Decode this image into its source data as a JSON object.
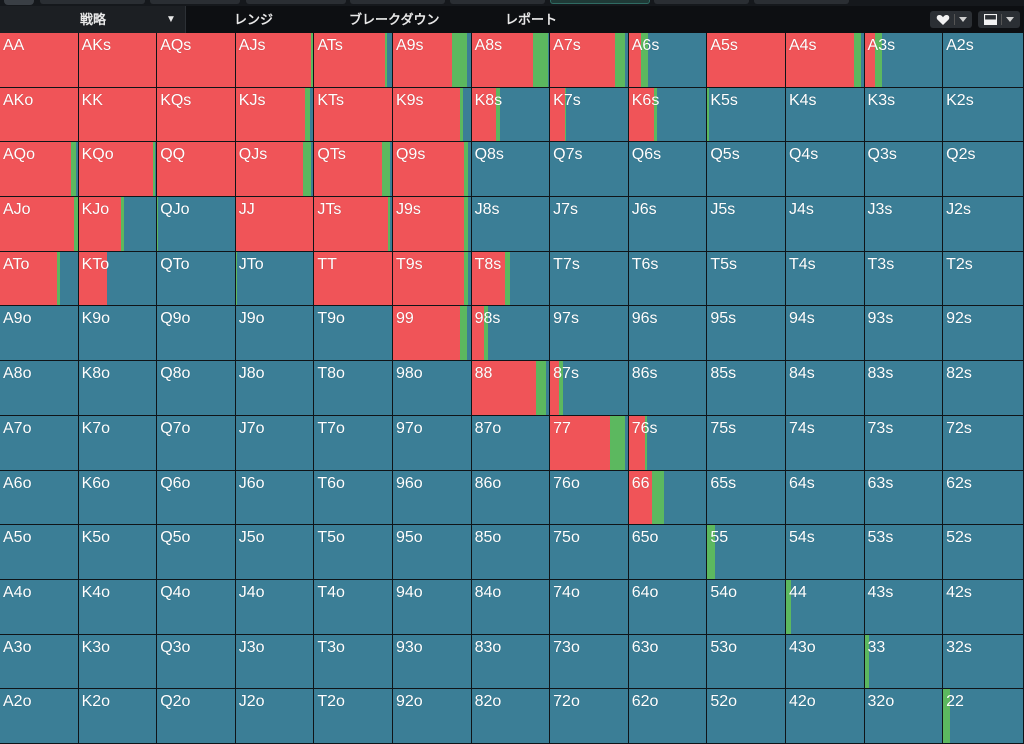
{
  "tabs": {
    "strategy": "戦略",
    "range": "レンジ",
    "breakdown": "ブレークダウン",
    "report": "レポート"
  },
  "toolbar": {
    "favorite_icon": "heart-icon",
    "view_icon": "layout-icon"
  },
  "colors": {
    "raise": "#f05458",
    "call": "#5cb85f",
    "fold": "#3b7e96"
  },
  "grid": {
    "rows": [
      [
        [
          "AA",
          1,
          0
        ],
        [
          "AKs",
          1,
          0
        ],
        [
          "AQs",
          1,
          0
        ],
        [
          "AJs",
          0.97,
          0.03
        ],
        [
          "ATs",
          0.91,
          0.02
        ],
        [
          "A9s",
          0.76,
          0.19
        ],
        [
          "A8s",
          0.79,
          0.19
        ],
        [
          "A7s",
          0.83,
          0.13
        ],
        [
          "A6s",
          0.16,
          0.09
        ],
        [
          "A5s",
          1,
          0
        ],
        [
          "A4s",
          0.88,
          0.09
        ],
        [
          "A3s",
          0.13,
          0.09
        ],
        [
          "A2s",
          0,
          0
        ]
      ],
      [
        [
          "AKo",
          1,
          0
        ],
        [
          "KK",
          1,
          0
        ],
        [
          "KQs",
          1,
          0
        ],
        [
          "KJs",
          0.89,
          0.07
        ],
        [
          "KTs",
          1,
          0
        ],
        [
          "K9s",
          0.87,
          0.03
        ],
        [
          "K8s",
          0.31,
          0.06
        ],
        [
          "K7s",
          0.19,
          0.02
        ],
        [
          "K6s",
          0.32,
          0.05
        ],
        [
          "K5s",
          0,
          0.02
        ],
        [
          "K4s",
          0,
          0
        ],
        [
          "K3s",
          0,
          0
        ],
        [
          "K2s",
          0,
          0
        ]
      ],
      [
        [
          "AQo",
          0.92,
          0.06
        ],
        [
          "KQo",
          0.96,
          0.03
        ],
        [
          "QQ",
          1,
          0
        ],
        [
          "QJs",
          0.86,
          0.11
        ],
        [
          "QTs",
          0.87,
          0.11
        ],
        [
          "Q9s",
          0.92,
          0.05
        ],
        [
          "Q8s",
          0,
          0
        ],
        [
          "Q7s",
          0,
          0
        ],
        [
          "Q6s",
          0,
          0
        ],
        [
          "Q5s",
          0,
          0
        ],
        [
          "Q4s",
          0,
          0
        ],
        [
          "Q3s",
          0,
          0
        ],
        [
          "Q2s",
          0,
          0
        ]
      ],
      [
        [
          "AJo",
          0.96,
          0.04
        ],
        [
          "KJo",
          0.55,
          0.04
        ],
        [
          "QJo",
          0,
          0.01
        ],
        [
          "JJ",
          1,
          0
        ],
        [
          "JTs",
          0.95,
          0.03
        ],
        [
          "J9s",
          0.91,
          0.06
        ],
        [
          "J8s",
          0,
          0
        ],
        [
          "J7s",
          0,
          0
        ],
        [
          "J6s",
          0,
          0
        ],
        [
          "J5s",
          0,
          0
        ],
        [
          "J4s",
          0,
          0
        ],
        [
          "J3s",
          0,
          0
        ],
        [
          "J2s",
          0,
          0
        ]
      ],
      [
        [
          "ATo",
          0.73,
          0.04
        ],
        [
          "KTo",
          0.36,
          0
        ],
        [
          "QTo",
          0,
          0
        ],
        [
          "JTo",
          0,
          0.02
        ],
        [
          "TT",
          1,
          0
        ],
        [
          "T9s",
          0.91,
          0.06
        ],
        [
          "T8s",
          0.43,
          0.06
        ],
        [
          "T7s",
          0,
          0
        ],
        [
          "T6s",
          0,
          0
        ],
        [
          "T5s",
          0,
          0
        ],
        [
          "T4s",
          0,
          0
        ],
        [
          "T3s",
          0,
          0
        ],
        [
          "T2s",
          0,
          0
        ]
      ],
      [
        [
          "A9o",
          0,
          0
        ],
        [
          "K9o",
          0,
          0
        ],
        [
          "Q9o",
          0,
          0
        ],
        [
          "J9o",
          0,
          0
        ],
        [
          "T9o",
          0,
          0
        ],
        [
          "99",
          0.86,
          0.09
        ],
        [
          "98s",
          0.16,
          0.05
        ],
        [
          "97s",
          0,
          0
        ],
        [
          "96s",
          0,
          0
        ],
        [
          "95s",
          0,
          0
        ],
        [
          "94s",
          0,
          0
        ],
        [
          "93s",
          0,
          0
        ],
        [
          "92s",
          0,
          0
        ]
      ],
      [
        [
          "A8o",
          0,
          0
        ],
        [
          "K8o",
          0,
          0
        ],
        [
          "Q8o",
          0,
          0
        ],
        [
          "J8o",
          0,
          0
        ],
        [
          "T8o",
          0,
          0
        ],
        [
          "98o",
          0,
          0
        ],
        [
          "88",
          0.83,
          0.13
        ],
        [
          "87s",
          0.12,
          0.04
        ],
        [
          "86s",
          0,
          0
        ],
        [
          "85s",
          0,
          0
        ],
        [
          "84s",
          0,
          0
        ],
        [
          "83s",
          0,
          0
        ],
        [
          "82s",
          0,
          0
        ]
      ],
      [
        [
          "A7o",
          0,
          0
        ],
        [
          "K7o",
          0,
          0
        ],
        [
          "Q7o",
          0,
          0
        ],
        [
          "J7o",
          0,
          0
        ],
        [
          "T7o",
          0,
          0
        ],
        [
          "97o",
          0,
          0
        ],
        [
          "87o",
          0,
          0
        ],
        [
          "77",
          0.77,
          0.19
        ],
        [
          "76s",
          0.21,
          0.03
        ],
        [
          "75s",
          0,
          0
        ],
        [
          "74s",
          0,
          0
        ],
        [
          "73s",
          0,
          0
        ],
        [
          "72s",
          0,
          0
        ]
      ],
      [
        [
          "A6o",
          0,
          0
        ],
        [
          "K6o",
          0,
          0
        ],
        [
          "Q6o",
          0,
          0
        ],
        [
          "J6o",
          0,
          0
        ],
        [
          "T6o",
          0,
          0
        ],
        [
          "96o",
          0,
          0
        ],
        [
          "86o",
          0,
          0
        ],
        [
          "76o",
          0,
          0
        ],
        [
          "66",
          0.3,
          0.16
        ],
        [
          "65s",
          0,
          0
        ],
        [
          "64s",
          0,
          0
        ],
        [
          "63s",
          0,
          0
        ],
        [
          "62s",
          0,
          0
        ]
      ],
      [
        [
          "A5o",
          0,
          0
        ],
        [
          "K5o",
          0,
          0
        ],
        [
          "Q5o",
          0,
          0
        ],
        [
          "J5o",
          0,
          0
        ],
        [
          "T5o",
          0,
          0
        ],
        [
          "95o",
          0,
          0
        ],
        [
          "85o",
          0,
          0
        ],
        [
          "75o",
          0,
          0
        ],
        [
          "65o",
          0,
          0
        ],
        [
          "55",
          0,
          0.1
        ],
        [
          "54s",
          0,
          0
        ],
        [
          "53s",
          0,
          0
        ],
        [
          "52s",
          0,
          0
        ]
      ],
      [
        [
          "A4o",
          0,
          0
        ],
        [
          "K4o",
          0,
          0
        ],
        [
          "Q4o",
          0,
          0
        ],
        [
          "J4o",
          0,
          0
        ],
        [
          "T4o",
          0,
          0
        ],
        [
          "94o",
          0,
          0
        ],
        [
          "84o",
          0,
          0
        ],
        [
          "74o",
          0,
          0
        ],
        [
          "64o",
          0,
          0
        ],
        [
          "54o",
          0,
          0
        ],
        [
          "44",
          0,
          0.07
        ],
        [
          "43s",
          0,
          0
        ],
        [
          "42s",
          0,
          0
        ]
      ],
      [
        [
          "A3o",
          0,
          0
        ],
        [
          "K3o",
          0,
          0
        ],
        [
          "Q3o",
          0,
          0
        ],
        [
          "J3o",
          0,
          0
        ],
        [
          "T3o",
          0,
          0
        ],
        [
          "93o",
          0,
          0
        ],
        [
          "83o",
          0,
          0
        ],
        [
          "73o",
          0,
          0
        ],
        [
          "63o",
          0,
          0
        ],
        [
          "53o",
          0,
          0
        ],
        [
          "43o",
          0,
          0
        ],
        [
          "33",
          0,
          0.06
        ],
        [
          "32s",
          0,
          0
        ]
      ],
      [
        [
          "A2o",
          0,
          0
        ],
        [
          "K2o",
          0,
          0
        ],
        [
          "Q2o",
          0,
          0
        ],
        [
          "J2o",
          0,
          0
        ],
        [
          "T2o",
          0,
          0
        ],
        [
          "92o",
          0,
          0
        ],
        [
          "82o",
          0,
          0
        ],
        [
          "72o",
          0,
          0
        ],
        [
          "62o",
          0,
          0
        ],
        [
          "52o",
          0,
          0
        ],
        [
          "42o",
          0,
          0
        ],
        [
          "32o",
          0,
          0
        ],
        [
          "22",
          0,
          0.08
        ]
      ]
    ]
  }
}
